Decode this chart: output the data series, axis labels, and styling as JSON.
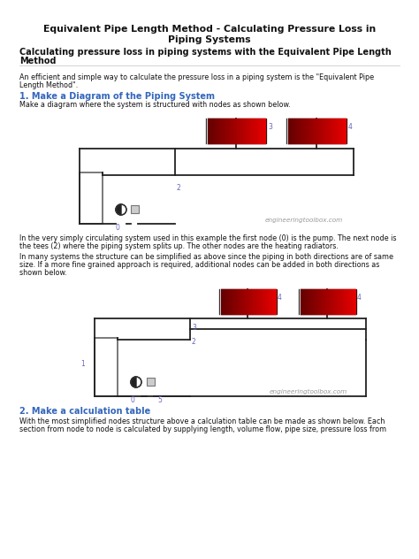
{
  "title_line1": "Equivalent Pipe Length Method - Calculating Pressure Loss in",
  "title_line2": "Piping Systems",
  "subtitle_line1": "Calculating pressure loss in piping systems with the Equivalent Pipe Length",
  "subtitle_line2": "Method",
  "intro_line1": "An efficient and simple way to calculate the pressure loss in a piping system is the \"Equivalent Pipe",
  "intro_line2": "Length Method\".",
  "section1_title": "1. Make a Diagram of the Piping System",
  "section1_body": "Make a diagram where the system is structured with nodes as shown below.",
  "para1_line1": "In the very simply circulating system used in this example the first node (0) is the pump. The next node is",
  "para1_line2": "the tees (2) where the piping system splits up. The other nodes are the heating radiators.",
  "para2_line1": "In many systems the structure can be simplified as above since the piping in both directions are of same",
  "para2_line2": "size. If a more fine grained approach is required, additional nodes can be added in both directions as",
  "para2_line3": "shown below.",
  "section2_title": "2. Make a calculation table",
  "section2_line1": "With the most simplified nodes structure above a calculation table can be made as shown below. Each",
  "section2_line2": "section from node to node is calculated by supplying length, volume flow, pipe size, pressure loss from",
  "watermark": "engineeringtoolbox.com",
  "bg_color": "#ffffff",
  "title_color": "#111111",
  "subtitle_color": "#111111",
  "section_color": "#3366bb",
  "body_color": "#111111",
  "node_color": "#6666bb",
  "pipe_color": "#222222",
  "watermark_color": "#999999"
}
